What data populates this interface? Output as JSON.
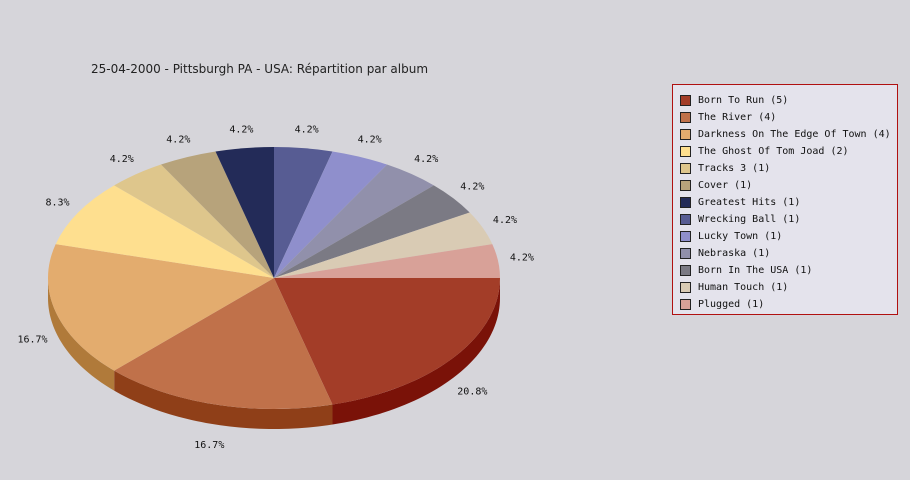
{
  "chart_data": {
    "type": "pie",
    "title": "25-04-2000 - Pittsburgh PA - USA:  Répartition par album",
    "legend_position": "right",
    "slices": [
      {
        "legend": "Born To Run (5)",
        "value": 5,
        "label": "20.8%",
        "color": "#a33d28",
        "side_color": "#7a1208"
      },
      {
        "legend": "The River (4)",
        "value": 4,
        "label": "16.7%",
        "color": "#c0714a",
        "side_color": "#8f3f18"
      },
      {
        "legend": "Darkness On The Edge Of Town (4)",
        "value": 4,
        "label": "16.7%",
        "color": "#e3ac6e",
        "side_color": "#b07a3a"
      },
      {
        "legend": "The Ghost Of Tom Joad (2)",
        "value": 2,
        "label": "8.3%",
        "color": "#fedf8f",
        "side_color": "#c9aa5a"
      },
      {
        "legend": "Tracks 3 (1)",
        "value": 1,
        "label": "4.2%",
        "color": "#dec68c",
        "side_color": "#ab935a"
      },
      {
        "legend": "Cover (1)",
        "value": 1,
        "label": "4.2%",
        "color": "#b7a37b",
        "side_color": "#85714a"
      },
      {
        "legend": "Greatest Hits (1)",
        "value": 1,
        "label": "4.2%",
        "color": "#232b58",
        "side_color": "#10153a"
      },
      {
        "legend": "Wrecking Ball (1)",
        "value": 1,
        "label": "4.2%",
        "color": "#575c93",
        "side_color": "#353a6a"
      },
      {
        "legend": "Lucky Town (1)",
        "value": 1,
        "label": "4.2%",
        "color": "#8f8fcc",
        "side_color": "#6565a0"
      },
      {
        "legend": "Nebraska (1)",
        "value": 1,
        "label": "4.2%",
        "color": "#9190ab",
        "side_color": "#656480"
      },
      {
        "legend": "Born In The USA (1)",
        "value": 1,
        "label": "4.2%",
        "color": "#7b7a84",
        "side_color": "#55545c"
      },
      {
        "legend": "Human Touch (1)",
        "value": 1,
        "label": "4.2%",
        "color": "#d9cbb4",
        "side_color": "#a89a84"
      },
      {
        "legend": "Plugged (1)",
        "value": 1,
        "label": "4.2%",
        "color": "#d8a198",
        "side_color": "#a87168"
      }
    ]
  }
}
